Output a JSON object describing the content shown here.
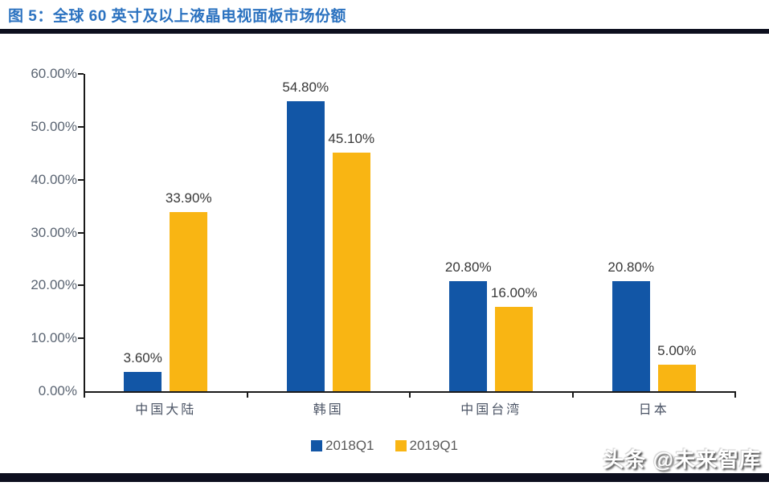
{
  "figure": {
    "title": "图 5：全球 60 英寸及以上液晶电视面板市场份额",
    "watermark": "头条 @未来智库"
  },
  "colors": {
    "title_accent": "#2B72C0",
    "divider": "#0D0F1E",
    "axis": "#1A1A1A",
    "tick_label": "#5A6472",
    "value_label": "#383838",
    "category_label": "#4C5566",
    "legend_label": "#595959",
    "series_2018Q1": "#1256A6",
    "series_2019Q1": "#F9B513"
  },
  "chart_data": {
    "type": "bar",
    "title": "全球 60 英寸及以上液晶电视面板市场份额",
    "categories": [
      "中国大陆",
      "韩国",
      "中国台湾",
      "日本"
    ],
    "series": [
      {
        "name": "2018Q1",
        "color": "#1256A6",
        "values": [
          3.6,
          54.8,
          20.8,
          20.8
        ],
        "data_labels": [
          "3.60%",
          "54.80%",
          "20.80%",
          "20.80%"
        ]
      },
      {
        "name": "2019Q1",
        "color": "#F9B513",
        "values": [
          33.9,
          45.1,
          16.0,
          5.0
        ],
        "data_labels": [
          "33.90%",
          "45.10%",
          "16.00%",
          "5.00%"
        ]
      }
    ],
    "y_axis": {
      "min": 0,
      "max": 60,
      "step": 10,
      "tick_labels": [
        "0.00%",
        "10.00%",
        "20.00%",
        "30.00%",
        "40.00%",
        "50.00%",
        "60.00%"
      ]
    },
    "xlabel": "",
    "ylabel": "",
    "grid": false,
    "legend_position": "bottom",
    "legend": [
      "2018Q1",
      "2019Q1"
    ]
  }
}
